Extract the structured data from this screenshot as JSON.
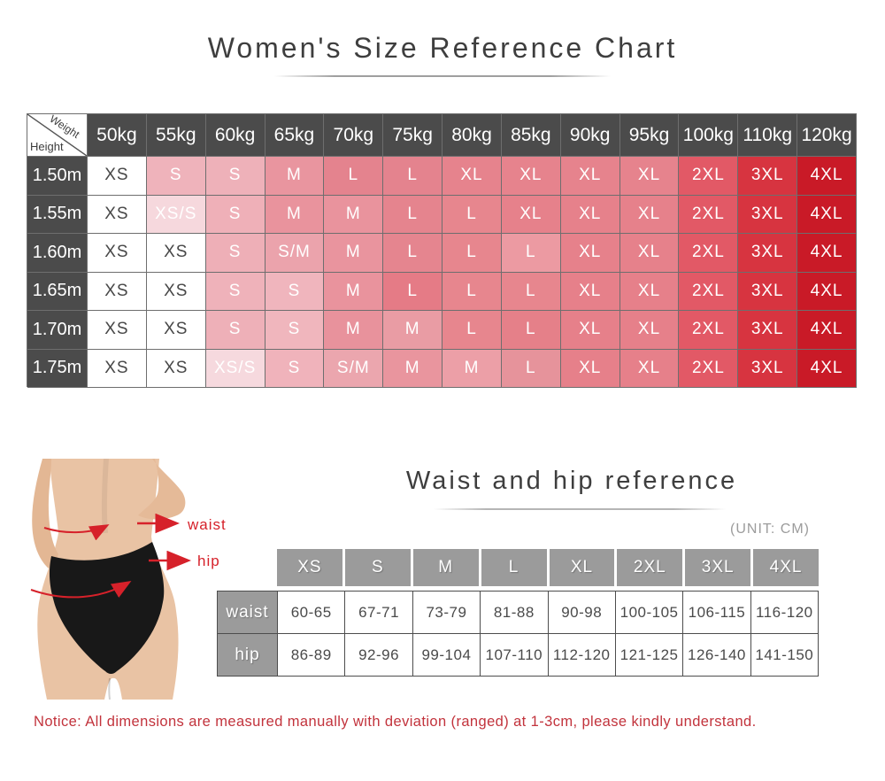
{
  "page": {
    "notice": "Notice: All dimensions are measured manually with deviation (ranged) at 1-3cm, please kindly understand."
  },
  "figure": {
    "waist_label": "waist",
    "hip_label": "hip"
  },
  "colors": {
    "dark_header_bg": "#4b4b4b",
    "gray_header_bg": "#9b9b9b",
    "notice_red": "#c2333c",
    "annotation_red": "#d6212a",
    "deep_red_4xl": "#c91a27"
  },
  "chart_data": [
    {
      "type": "table",
      "title": "Women's Size Reference Chart",
      "corner_top": "Weight",
      "corner_bottom": "Height",
      "columns": [
        "50kg",
        "55kg",
        "60kg",
        "65kg",
        "70kg",
        "75kg",
        "80kg",
        "85kg",
        "90kg",
        "95kg",
        "100kg",
        "110kg",
        "120kg"
      ],
      "rows": [
        "1.50m",
        "1.55m",
        "1.60m",
        "1.65m",
        "1.70m",
        "1.75m"
      ],
      "cells": [
        [
          "XS",
          "S",
          "S",
          "M",
          "L",
          "L",
          "XL",
          "XL",
          "XL",
          "XL",
          "2XL",
          "3XL",
          "4XL"
        ],
        [
          "XS",
          "XS/S",
          "S",
          "M",
          "M",
          "L",
          "L",
          "XL",
          "XL",
          "XL",
          "2XL",
          "3XL",
          "4XL"
        ],
        [
          "XS",
          "XS",
          "S",
          "S/M",
          "M",
          "L",
          "L",
          "L",
          "XL",
          "XL",
          "2XL",
          "3XL",
          "4XL"
        ],
        [
          "XS",
          "XS",
          "S",
          "S",
          "M",
          "L",
          "L",
          "L",
          "XL",
          "XL",
          "2XL",
          "3XL",
          "4XL"
        ],
        [
          "XS",
          "XS",
          "S",
          "S",
          "M",
          "M",
          "L",
          "L",
          "XL",
          "XL",
          "2XL",
          "3XL",
          "4XL"
        ],
        [
          "XS",
          "XS",
          "XS/S",
          "S",
          "S/M",
          "M",
          "M",
          "L",
          "XL",
          "XL",
          "2XL",
          "3XL",
          "4XL"
        ]
      ],
      "cell_colors": [
        [
          "#ffffff",
          "#efb3bb",
          "#eeb1b9",
          "#e9959f",
          "#e4838e",
          "#e4838e",
          "#e6838d",
          "#e6838d",
          "#e6838d",
          "#e6838d",
          "#e25966",
          "#d73440",
          "#c91a27"
        ],
        [
          "#ffffff",
          "#f6d8dd",
          "#efb0b8",
          "#e9939d",
          "#e9939d",
          "#e5848e",
          "#e7868e",
          "#e6818b",
          "#e6818b",
          "#e6818b",
          "#e25966",
          "#d73440",
          "#c91a27"
        ],
        [
          "#ffffff",
          "#ffffff",
          "#eeafb7",
          "#eba3ac",
          "#e9949e",
          "#e5858f",
          "#e7868e",
          "#ec9aa2",
          "#e6818b",
          "#e6818b",
          "#e25966",
          "#d73440",
          "#c91a27"
        ],
        [
          "#ffffff",
          "#ffffff",
          "#efb2ba",
          "#f0b5bd",
          "#e9939d",
          "#e57b86",
          "#e7868e",
          "#e7868e",
          "#e6808a",
          "#e6808a",
          "#e25966",
          "#d73440",
          "#c91a27"
        ],
        [
          "#ffffff",
          "#ffffff",
          "#eeb0b8",
          "#f0b6bd",
          "#e8929c",
          "#e99ca4",
          "#e7868e",
          "#e58089",
          "#e6808a",
          "#e6808a",
          "#e25966",
          "#d73440",
          "#c91a27"
        ],
        [
          "#ffffff",
          "#ffffff",
          "#f6d9de",
          "#f0b3bb",
          "#eba6ae",
          "#e9959e",
          "#ec9fa7",
          "#e6939b",
          "#e6808a",
          "#e6808a",
          "#e25966",
          "#d73440",
          "#c91a27"
        ]
      ]
    },
    {
      "type": "table",
      "title": "Waist and hip reference",
      "unit_note": "(UNIT: CM)",
      "columns": [
        "XS",
        "S",
        "M",
        "L",
        "XL",
        "2XL",
        "3XL",
        "4XL"
      ],
      "rows": [
        {
          "label": "waist",
          "values": [
            "60-65",
            "67-71",
            "73-79",
            "81-88",
            "90-98",
            "100-105",
            "106-115",
            "116-120"
          ]
        },
        {
          "label": "hip",
          "values": [
            "86-89",
            "92-96",
            "99-104",
            "107-110",
            "112-120",
            "121-125",
            "126-140",
            "141-150"
          ]
        }
      ]
    }
  ]
}
